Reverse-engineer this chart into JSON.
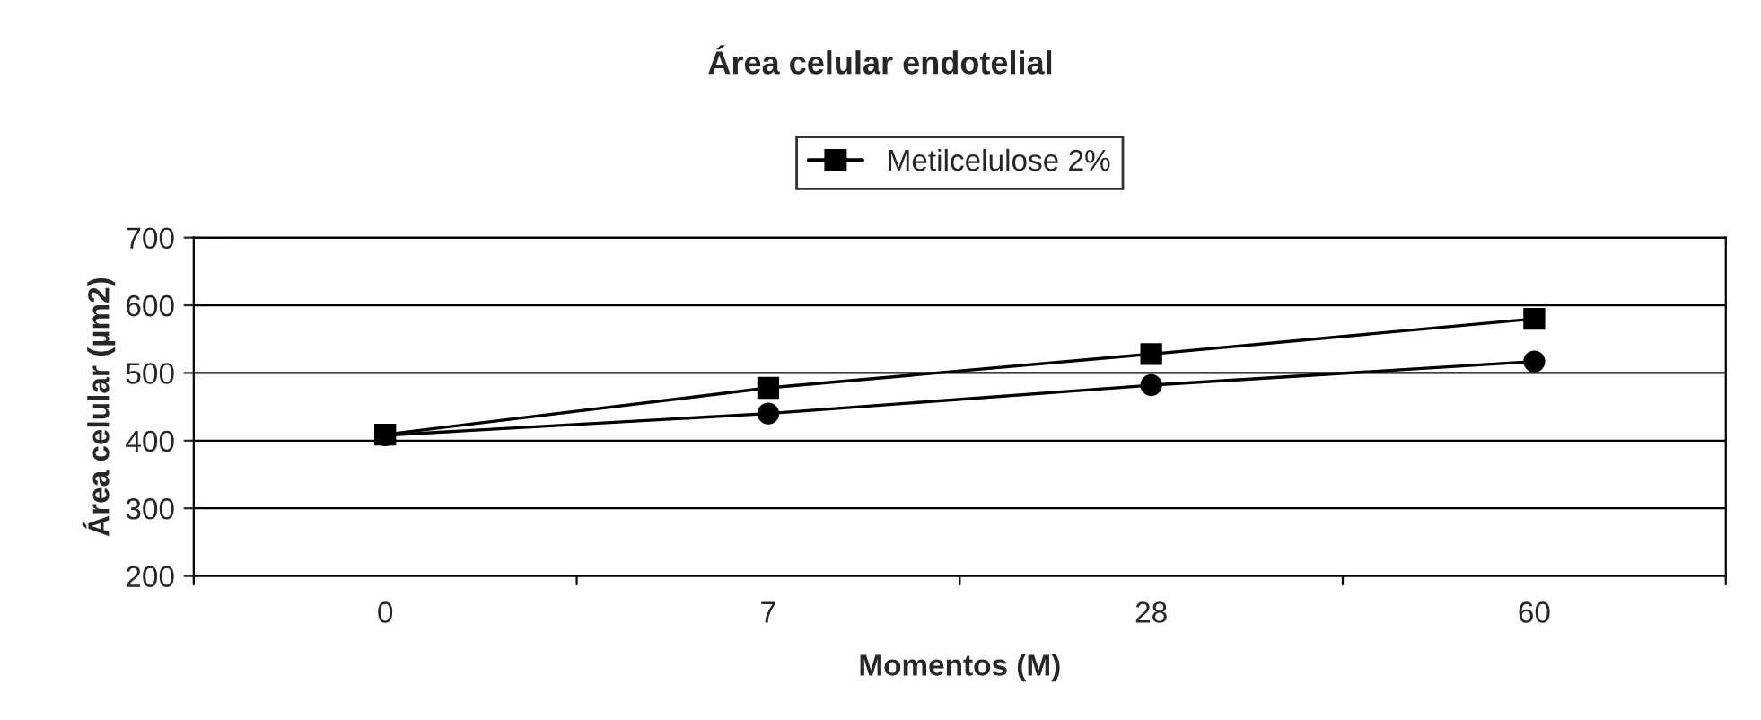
{
  "chart_data": {
    "type": "line",
    "title": "Área celular endotelial",
    "xlabel": "Momentos (M)",
    "ylabel": "Área celular (µm2)",
    "categories": [
      "0",
      "7",
      "28",
      "60"
    ],
    "series": [
      {
        "name": "Metilcelulose 2%",
        "color": "#000000",
        "marker": "square",
        "values": [
          409,
          478,
          528,
          580
        ]
      },
      {
        "color": "#000000",
        "marker": "circle",
        "values": [
          408,
          440,
          482,
          517
        ]
      }
    ],
    "ylim": [
      200,
      700
    ],
    "yticks": [
      200,
      300,
      400,
      500,
      600,
      700
    ],
    "grid": "y",
    "legend": "top"
  }
}
